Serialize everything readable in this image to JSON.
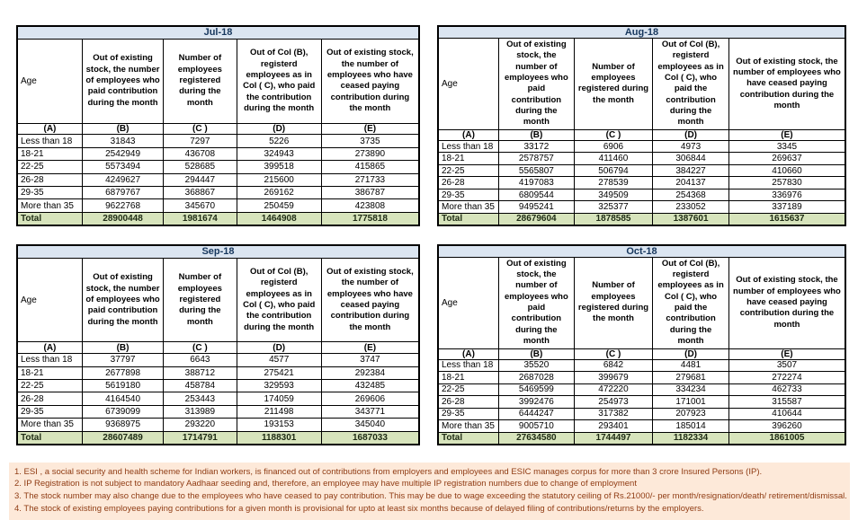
{
  "columns": {
    "age": "Age",
    "descriptions": [
      "Out of existing stock, the number of employees who paid contribution during the month",
      "Number of employees registered during the month",
      "Out of Col (B), registerd employees as in Col ( C), who paid the contribution during the month",
      "Out of existing stock, the number of employees who have ceased paying contribution during the month"
    ],
    "letters": [
      "(A)",
      "(B)",
      "(C )",
      "(D)",
      "(E)"
    ]
  },
  "age_groups": [
    "Less than 18",
    "18-21",
    "22-25",
    "26-28",
    "29-35",
    "More than 35"
  ],
  "total_label": "Total",
  "tables": [
    {
      "title": "Jul-18",
      "rows": [
        [
          31843,
          7297,
          5226,
          3735
        ],
        [
          2542949,
          436708,
          324943,
          273890
        ],
        [
          5573494,
          528685,
          399518,
          415865
        ],
        [
          4249627,
          294447,
          215600,
          271733
        ],
        [
          6879767,
          368867,
          269162,
          386787
        ],
        [
          9622768,
          345670,
          250459,
          423808
        ]
      ],
      "total": [
        28900448,
        1981674,
        1464908,
        1775818
      ]
    },
    {
      "title": "Aug-18",
      "rows": [
        [
          33172,
          6906,
          4973,
          3345
        ],
        [
          2578757,
          411460,
          306844,
          269637
        ],
        [
          5565807,
          506794,
          384227,
          410660
        ],
        [
          4197083,
          278539,
          204137,
          257830
        ],
        [
          6809544,
          349509,
          254368,
          336976
        ],
        [
          9495241,
          325377,
          233052,
          337189
        ]
      ],
      "total": [
        28679604,
        1878585,
        1387601,
        1615637
      ]
    },
    {
      "title": "Sep-18",
      "rows": [
        [
          37797,
          6643,
          4577,
          3747
        ],
        [
          2677898,
          388712,
          275421,
          292384
        ],
        [
          5619180,
          458784,
          329593,
          432485
        ],
        [
          4164540,
          253443,
          174059,
          269606
        ],
        [
          6739099,
          313989,
          211498,
          343771
        ],
        [
          9368975,
          293220,
          193153,
          345040
        ]
      ],
      "total": [
        28607489,
        1714791,
        1188301,
        1687033
      ]
    },
    {
      "title": "Oct-18",
      "rows": [
        [
          35520,
          6842,
          4481,
          3507
        ],
        [
          2687028,
          399679,
          279681,
          272274
        ],
        [
          5469599,
          472220,
          334234,
          462733
        ],
        [
          3992476,
          254973,
          171001,
          315587
        ],
        [
          6444247,
          317382,
          207923,
          410644
        ],
        [
          9005710,
          293401,
          185014,
          396260
        ]
      ],
      "total": [
        27634580,
        1744497,
        1182334,
        1861005
      ]
    }
  ],
  "footnotes": [
    "1. ESI , a social security and health scheme for Indian workers, is financed out of contributions from employers and employees and ESIC manages corpus for more than 3 crore Insured Persons (IP).",
    "2. IP Registration is not subject to mandatory Aadhaar seeding and, therefore, an employee may have multiple IP registration numbers due to change of employment",
    "3. The stock number may also change due to the employees who have ceased to pay contribution. This may  be due to wage exceeding the statutory ceiling of  Rs.21000/- per month/resignation/death/ retirement/dismissal.",
    "4. The stock of existing employees paying contributions for a given month is provisional for upto at least six months because of delayed filing of contributions/returns by the employers."
  ],
  "colors": {
    "month_header_bg": "#dbe5f1",
    "month_header_text": "#17375d",
    "total_row_bg": "#d7e4bc",
    "footnote_bg": "#fde9d9",
    "footnote_text": "#8f3b13",
    "table_border": "#000000"
  }
}
